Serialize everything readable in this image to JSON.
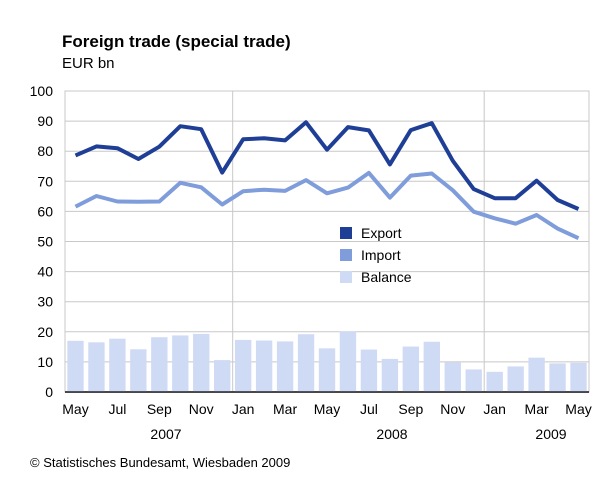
{
  "title": "Foreign trade (special trade)",
  "unit_label": "EUR bn",
  "credit": "© Statistisches Bundesamt, Wiesbaden 2009",
  "chart_data": {
    "type": "bar+line",
    "title": "Foreign trade (special trade)",
    "ylabel": "EUR bn",
    "ylim": [
      0,
      100
    ],
    "yticks": [
      0,
      10,
      20,
      30,
      40,
      50,
      60,
      70,
      80,
      90,
      100
    ],
    "xtick_labels": [
      "May",
      "Jul",
      "Sep",
      "Nov",
      "Jan",
      "Mar",
      "May",
      "Jul",
      "Sep",
      "Nov",
      "Jan",
      "Mar",
      "May"
    ],
    "year_labels": [
      "2007",
      "2008",
      "2009"
    ],
    "categories": [
      "2007-05",
      "2007-06",
      "2007-07",
      "2007-08",
      "2007-09",
      "2007-10",
      "2007-11",
      "2007-12",
      "2008-01",
      "2008-02",
      "2008-03",
      "2008-04",
      "2008-05",
      "2008-06",
      "2008-07",
      "2008-08",
      "2008-09",
      "2008-10",
      "2008-11",
      "2008-12",
      "2009-01",
      "2009-02",
      "2009-03",
      "2009-04",
      "2009-05"
    ],
    "legend_position": "center",
    "series": [
      {
        "name": "Export",
        "type": "line",
        "color": "#1f3f96",
        "values": [
          78.6,
          81.6,
          81.0,
          77.4,
          81.5,
          88.3,
          87.3,
          72.9,
          84.0,
          84.3,
          83.6,
          89.6,
          80.5,
          88.0,
          86.9,
          75.6,
          87.0,
          89.3,
          76.8,
          67.4,
          64.4,
          64.4,
          70.2,
          63.8,
          60.8
        ]
      },
      {
        "name": "Import",
        "type": "line",
        "color": "#7f9cdb",
        "values": [
          61.6,
          65.1,
          63.3,
          63.2,
          63.3,
          69.5,
          68.0,
          62.3,
          66.7,
          67.2,
          66.8,
          70.4,
          66.0,
          67.9,
          72.8,
          64.6,
          71.9,
          72.6,
          67.0,
          59.9,
          57.7,
          55.9,
          58.8,
          54.3,
          51.1
        ]
      },
      {
        "name": "Balance",
        "type": "bar",
        "color": "#cfdaf5",
        "values": [
          17.0,
          16.5,
          17.7,
          14.2,
          18.2,
          18.8,
          19.3,
          10.6,
          17.3,
          17.1,
          16.8,
          19.2,
          14.5,
          20.1,
          14.1,
          11.0,
          15.1,
          16.7,
          9.8,
          7.5,
          6.7,
          8.5,
          11.4,
          9.5,
          9.7
        ]
      }
    ]
  }
}
